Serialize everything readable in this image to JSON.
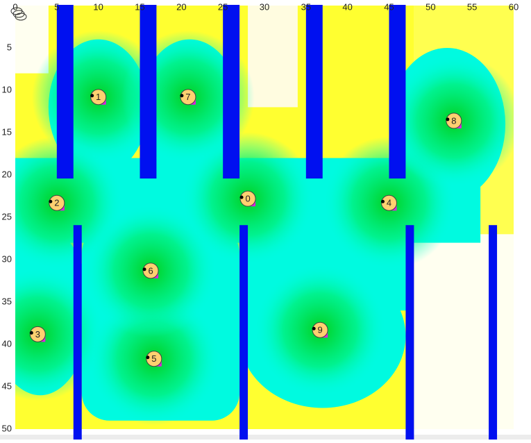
{
  "axes": {
    "xlim": [
      0,
      60
    ],
    "ylim": [
      0,
      50
    ],
    "xticks": [
      0,
      5,
      10,
      15,
      20,
      25,
      30,
      35,
      40,
      45,
      50,
      55,
      60
    ],
    "yticks": [
      5,
      10,
      15,
      20,
      25,
      30,
      35,
      40,
      45,
      50
    ]
  },
  "walls": [
    {
      "x": [
        5,
        7
      ],
      "y": [
        0,
        20.5
      ]
    },
    {
      "x": [
        15,
        17
      ],
      "y": [
        0,
        20.5
      ]
    },
    {
      "x": [
        25,
        27
      ],
      "y": [
        0,
        20.5
      ]
    },
    {
      "x": [
        35,
        37
      ],
      "y": [
        0,
        20.5
      ]
    },
    {
      "x": [
        45,
        47
      ],
      "y": [
        0,
        20.5
      ]
    },
    {
      "x": [
        7,
        8
      ],
      "y": [
        26,
        51.5
      ]
    },
    {
      "x": [
        27,
        28
      ],
      "y": [
        26,
        51.5
      ]
    },
    {
      "x": [
        47,
        48
      ],
      "y": [
        26,
        51.5
      ]
    },
    {
      "x": [
        57,
        58
      ],
      "y": [
        26,
        51.5
      ]
    }
  ],
  "agents": [
    {
      "label": "0",
      "x": 28,
      "y": 22.8
    },
    {
      "label": "1",
      "x": 10,
      "y": 10.8
    },
    {
      "label": "2",
      "x": 5,
      "y": 23.3
    },
    {
      "label": "3",
      "x": 2.7,
      "y": 38.8
    },
    {
      "label": "4",
      "x": 45,
      "y": 23.3
    },
    {
      "label": "5",
      "x": 16.7,
      "y": 41.7
    },
    {
      "label": "6",
      "x": 16.3,
      "y": 31.3
    },
    {
      "label": "7",
      "x": 20.8,
      "y": 10.8
    },
    {
      "label": "8",
      "x": 52.8,
      "y": 13.6
    },
    {
      "label": "9",
      "x": 36.7,
      "y": 38.3
    }
  ]
}
